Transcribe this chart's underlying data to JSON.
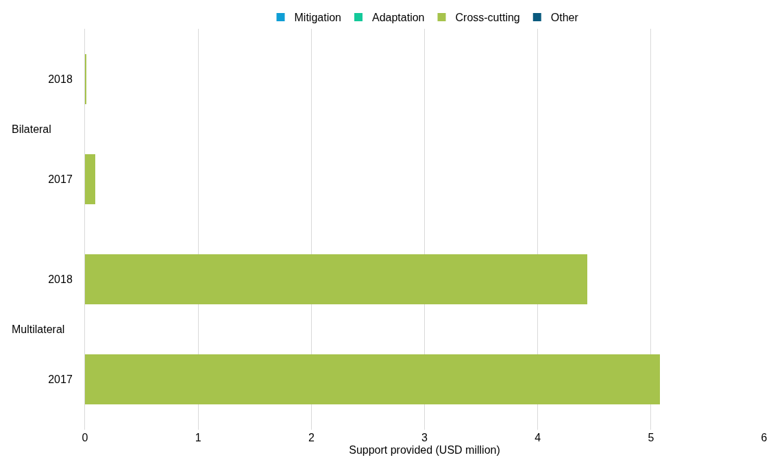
{
  "chart_data": {
    "type": "bar",
    "orientation": "horizontal",
    "stacked": true,
    "xlabel": "Support provided (USD million)",
    "categories": [
      "2018",
      "2017",
      "2018",
      "2017"
    ],
    "annotations": [
      "Bilateral",
      "Multilateral"
    ],
    "series": [
      {
        "name": "Mitigation",
        "color": "#0f9ed5",
        "values": [
          null,
          null,
          null,
          null
        ]
      },
      {
        "name": "Adaptation",
        "color": "#14c99a",
        "values": [
          null,
          null,
          null,
          null
        ]
      },
      {
        "name": "Cross-cutting",
        "color": "#a6c34c",
        "values": [
          0.01,
          0.09,
          4.44,
          5.08
        ]
      },
      {
        "name": "Other",
        "color": "#0a5a7e",
        "values": [
          null,
          null,
          null,
          null
        ]
      }
    ],
    "xlim": [
      0,
      6
    ],
    "xticks": [
      0,
      1,
      2,
      3,
      4,
      5,
      6
    ],
    "grid": "x",
    "legend": "top"
  }
}
